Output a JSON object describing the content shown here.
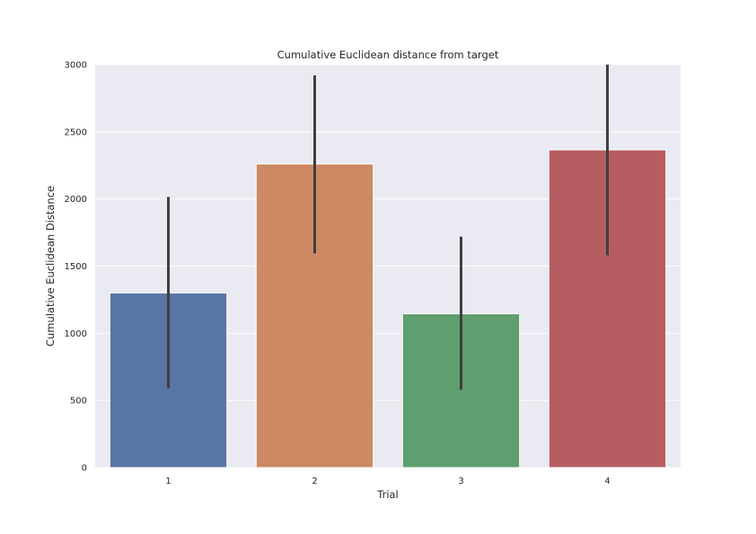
{
  "chart_data": {
    "type": "bar",
    "title": "Cumulative Euclidean distance from target",
    "xlabel": "Trial",
    "ylabel": "Cumulative Euclidean Distance",
    "categories": [
      "1",
      "2",
      "3",
      "4"
    ],
    "values": [
      1300,
      2260,
      1145,
      2365
    ],
    "error_low": [
      590,
      1595,
      580,
      1580
    ],
    "error_high": [
      2015,
      2920,
      1720,
      3000
    ],
    "ylim": [
      0,
      3000
    ],
    "yticks": [
      0,
      500,
      1000,
      1500,
      2000,
      2500,
      3000
    ],
    "colors": [
      "#5975a4",
      "#cc8963",
      "#5f9e6e",
      "#b55d60"
    ],
    "error_color": "#3f3f3f",
    "background": "#eaeaf2",
    "grid": true
  }
}
